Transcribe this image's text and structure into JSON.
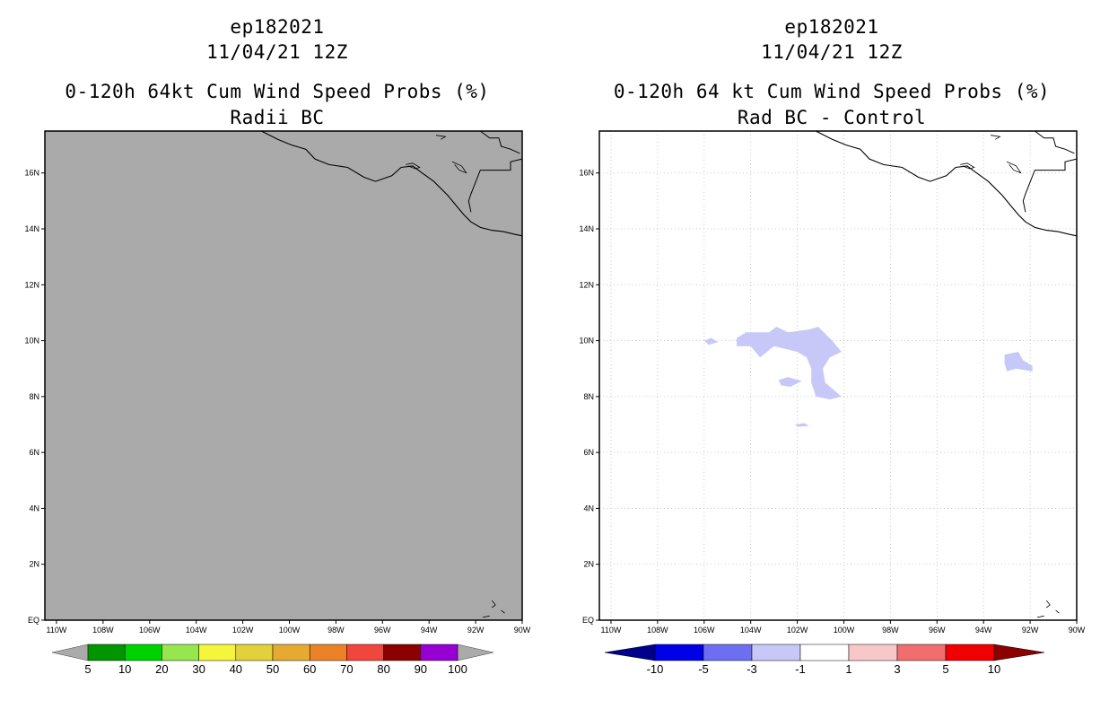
{
  "colors": {
    "land_gray": "#aaaaaa",
    "grid": "#bbbbbb",
    "shade_light_blue": "#c8c8f8",
    "coast": "#000000"
  },
  "panels": [
    {
      "id": "left",
      "title_lines": [
        "ep182021",
        "11/04/21 12Z",
        "0-120h 64kt Cum Wind Speed Probs (%)",
        "Radii BC"
      ],
      "lon_ticks": [
        "110W",
        "108W",
        "106W",
        "104W",
        "102W",
        "100W",
        "98W",
        "96W",
        "94W",
        "92W",
        "90W"
      ],
      "lat_ticks": [
        "EQ",
        "2N",
        "4N",
        "6N",
        "8N",
        "10N",
        "12N",
        "14N",
        "16N"
      ],
      "colorbar": {
        "colors": [
          "#009600",
          "#00d200",
          "#96e650",
          "#f5f53c",
          "#e1d23c",
          "#e6aa32",
          "#eb8228",
          "#f0463c",
          "#8c0000",
          "#9600d2"
        ],
        "labels": [
          "5",
          "10",
          "20",
          "30",
          "40",
          "50",
          "60",
          "70",
          "80",
          "90",
          "100"
        ],
        "end_color": "#aaaaaa"
      }
    },
    {
      "id": "right",
      "title_lines": [
        "ep182021",
        "11/04/21 12Z",
        "0-120h 64 kt Cum Wind Speed Probs (%)",
        "Rad BC - Control"
      ],
      "lon_ticks": [
        "110W",
        "108W",
        "106W",
        "104W",
        "102W",
        "100W",
        "98W",
        "96W",
        "94W",
        "92W",
        "90W"
      ],
      "lat_ticks": [
        "EQ",
        "2N",
        "4N",
        "6N",
        "8N",
        "10N",
        "12N",
        "14N",
        "16N"
      ],
      "colorbar": {
        "colors": [
          "#0000e6",
          "#6e6ef0",
          "#c8c8f8",
          "#ffffff",
          "#f8c8c8",
          "#f06e6e",
          "#f00000"
        ],
        "labels": [
          "-10",
          "-5",
          "-3",
          "-1",
          "1",
          "3",
          "5",
          "10"
        ],
        "end_low": "#00008c",
        "end_high": "#8c0000"
      }
    }
  ]
}
